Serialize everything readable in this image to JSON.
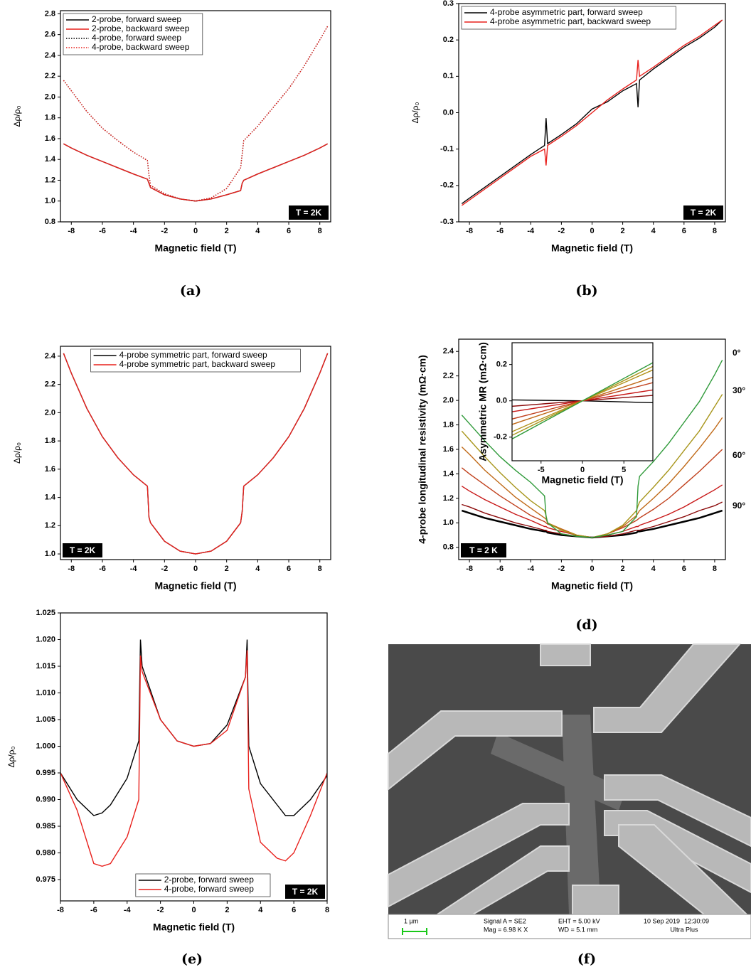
{
  "chart_data": [
    {
      "type": "line",
      "caption": "(a)",
      "xlabel": "Magnetic field (T)",
      "ylabel": "Δρ/ρ₀",
      "xlim": [
        -8.7,
        8.7
      ],
      "xticks": [
        -8,
        -6,
        -4,
        -2,
        0,
        2,
        4,
        6,
        8
      ],
      "ylim": [
        0.8,
        2.83
      ],
      "yticks": [
        0.8,
        {
          "value": 1,
          "label": "1.0"
        },
        1.2,
        1.4,
        1.6,
        1.8,
        {
          "value": 2,
          "label": "2.0"
        },
        2.2,
        2.4,
        2.6,
        2.8
      ],
      "x": [
        -8.5,
        -8,
        -7,
        -6,
        -5,
        -4,
        -3.1,
        -3,
        -2.9,
        -2,
        -1,
        0,
        1,
        2,
        2.9,
        3,
        3.1,
        4,
        5,
        6,
        7,
        8,
        8.5
      ],
      "series": [
        {
          "name": "2-probe, forward sweep",
          "color": "#000000",
          "dash": "solid",
          "values": [
            1.55,
            1.51,
            1.44,
            1.38,
            1.32,
            1.26,
            1.21,
            1.17,
            1.13,
            1.06,
            1.02,
            1.0,
            1.02,
            1.06,
            1.1,
            1.17,
            1.2,
            1.26,
            1.32,
            1.38,
            1.44,
            1.51,
            1.55
          ]
        },
        {
          "name": "2-probe, backward sweep",
          "color": "#e8201c",
          "dash": "solid",
          "values": [
            1.55,
            1.51,
            1.44,
            1.38,
            1.32,
            1.26,
            1.21,
            1.17,
            1.13,
            1.06,
            1.02,
            1.0,
            1.02,
            1.06,
            1.1,
            1.17,
            1.2,
            1.26,
            1.32,
            1.38,
            1.44,
            1.51,
            1.55
          ]
        },
        {
          "name": "4-probe, forward sweep",
          "color": "#000000",
          "dash": "dot",
          "values": [
            2.16,
            2.06,
            1.86,
            1.7,
            1.58,
            1.47,
            1.39,
            1.25,
            1.15,
            1.07,
            1.02,
            1.0,
            1.03,
            1.12,
            1.32,
            1.45,
            1.58,
            1.72,
            1.9,
            2.08,
            2.3,
            2.55,
            2.68
          ]
        },
        {
          "name": "4-probe, backward sweep",
          "color": "#e8201c",
          "dash": "dot",
          "values": [
            2.16,
            2.06,
            1.86,
            1.7,
            1.58,
            1.47,
            1.39,
            1.25,
            1.15,
            1.07,
            1.02,
            1.0,
            1.03,
            1.12,
            1.32,
            1.45,
            1.58,
            1.72,
            1.9,
            2.08,
            2.3,
            2.55,
            2.68
          ]
        }
      ],
      "legend_corner": "upper left",
      "annotation": "T = 2K",
      "annotation_corner": "lower right"
    },
    {
      "type": "line",
      "caption": "(b)",
      "xlabel": "Magnetic field (T)",
      "ylabel": "Δρ/ρ₀",
      "xlim": [
        -8.7,
        8.7
      ],
      "xticks": [
        -8,
        -6,
        -4,
        -2,
        0,
        2,
        4,
        6,
        8
      ],
      "ylim": [
        -0.3,
        0.3
      ],
      "yticks": [
        -0.3,
        -0.2,
        -0.1,
        {
          "value": 0,
          "label": "0.0"
        },
        0.1,
        0.2,
        0.3
      ],
      "x": [
        -8.5,
        -8,
        -7,
        -6,
        -5,
        -4,
        -3.1,
        -3,
        -2.9,
        -2,
        -1,
        0,
        1,
        2,
        2.9,
        3,
        3.1,
        4,
        5,
        6,
        7,
        8,
        8.5
      ],
      "series": [
        {
          "name": "4-probe asymmetric part, forward sweep",
          "color": "#000000",
          "dash": "solid",
          "values": [
            -0.25,
            -0.235,
            -0.205,
            -0.175,
            -0.145,
            -0.115,
            -0.09,
            -0.015,
            -0.085,
            -0.06,
            -0.03,
            0.01,
            0.03,
            0.06,
            0.08,
            0.015,
            0.09,
            0.12,
            0.15,
            0.18,
            0.205,
            0.235,
            0.255
          ]
        },
        {
          "name": "4-probe asymmetric part, backward sweep",
          "color": "#e8201c",
          "dash": "solid",
          "values": [
            -0.255,
            -0.24,
            -0.21,
            -0.18,
            -0.15,
            -0.12,
            -0.1,
            -0.145,
            -0.09,
            -0.065,
            -0.035,
            0.0,
            0.035,
            0.065,
            0.09,
            0.145,
            0.1,
            0.125,
            0.155,
            0.185,
            0.21,
            0.24,
            0.255
          ]
        }
      ],
      "legend_corner": "upper left",
      "annotation": "T = 2K",
      "annotation_corner": "lower right"
    },
    {
      "type": "line",
      "caption": "(c)",
      "xlabel": "Magnetic field (T)",
      "ylabel": "Δρ/ρ₀",
      "xlim": [
        -8.7,
        8.7
      ],
      "xticks": [
        -8,
        -6,
        -4,
        -2,
        0,
        2,
        4,
        6,
        8
      ],
      "ylim": [
        0.96,
        2.47
      ],
      "yticks": [
        {
          "value": 1,
          "label": "1.0"
        },
        1.2,
        1.4,
        1.6,
        1.8,
        {
          "value": 2,
          "label": "2.0"
        },
        2.2,
        2.4
      ],
      "x": [
        -8.5,
        -8,
        -7,
        -6,
        -5,
        -4,
        -3.1,
        -3,
        -2.9,
        -2,
        -1,
        0,
        1,
        2,
        2.9,
        3,
        3.1,
        4,
        5,
        6,
        7,
        8,
        8.5
      ],
      "series": [
        {
          "name": "4-probe symmetric part, forward sweep",
          "color": "#000000",
          "dash": "solid",
          "values": [
            2.42,
            2.28,
            2.03,
            1.83,
            1.68,
            1.56,
            1.48,
            1.26,
            1.22,
            1.09,
            1.02,
            1.0,
            1.02,
            1.09,
            1.22,
            1.3,
            1.48,
            1.56,
            1.68,
            1.83,
            2.03,
            2.28,
            2.42
          ]
        },
        {
          "name": "4-probe symmetric part, backward sweep",
          "color": "#e8201c",
          "dash": "solid",
          "values": [
            2.42,
            2.28,
            2.03,
            1.83,
            1.68,
            1.56,
            1.48,
            1.26,
            1.22,
            1.09,
            1.02,
            1.0,
            1.02,
            1.09,
            1.22,
            1.3,
            1.48,
            1.56,
            1.68,
            1.83,
            2.03,
            2.28,
            2.42
          ]
        }
      ],
      "legend_corner": "upper center",
      "annotation": "T = 2K",
      "annotation_corner": "lower left"
    },
    {
      "type": "line",
      "caption": "(d)",
      "xlabel": "Magnetic field (T)",
      "ylabel": "4-probe longitudinal resistivity (mΩ·cm)",
      "xlim": [
        -8.7,
        8.7
      ],
      "xticks": [
        -8,
        -6,
        -4,
        -2,
        0,
        2,
        4,
        6,
        8
      ],
      "ylim": [
        0.7,
        2.5
      ],
      "yticks": [
        0.8,
        {
          "value": 1,
          "label": "1.0"
        },
        1.2,
        1.4,
        1.6,
        1.8,
        {
          "value": 2,
          "label": "2.0"
        },
        2.2,
        2.4
      ],
      "x": [
        -8.5,
        -8,
        -7,
        -6,
        -5,
        -4,
        -3.1,
        -3,
        -2.9,
        -2,
        -1,
        0,
        1,
        2,
        2.9,
        3,
        3.1,
        4,
        5,
        6,
        7,
        8,
        8.5
      ],
      "series": [
        {
          "color": "#000000",
          "values": [
            1.1,
            1.08,
            1.04,
            1.01,
            0.98,
            0.95,
            0.93,
            0.93,
            0.92,
            0.9,
            0.89,
            0.88,
            0.89,
            0.9,
            0.92,
            0.93,
            0.93,
            0.95,
            0.98,
            1.01,
            1.04,
            1.08,
            1.1
          ]
        },
        {
          "color": "#8b0a0a",
          "values": [
            1.15,
            1.13,
            1.08,
            1.04,
            1.0,
            0.97,
            0.94,
            0.94,
            0.93,
            0.91,
            0.89,
            0.88,
            0.89,
            0.91,
            0.94,
            0.94,
            0.94,
            0.97,
            1.01,
            1.05,
            1.1,
            1.14,
            1.17
          ]
        },
        {
          "color": "#c81818",
          "values": [
            1.3,
            1.26,
            1.19,
            1.13,
            1.07,
            1.02,
            0.97,
            0.97,
            0.96,
            0.93,
            0.9,
            0.88,
            0.9,
            0.93,
            0.97,
            0.97,
            0.98,
            1.02,
            1.07,
            1.13,
            1.2,
            1.27,
            1.31
          ]
        },
        {
          "color": "#c0401c",
          "values": [
            1.45,
            1.4,
            1.31,
            1.22,
            1.14,
            1.06,
            1.01,
            1.0,
            0.99,
            0.95,
            0.9,
            0.88,
            0.91,
            0.96,
            1.02,
            1.03,
            1.04,
            1.11,
            1.2,
            1.31,
            1.42,
            1.54,
            1.6
          ]
        },
        {
          "color": "#c06a18",
          "values": [
            1.62,
            1.56,
            1.43,
            1.32,
            1.21,
            1.12,
            1.04,
            1.03,
            1.0,
            0.95,
            0.9,
            0.88,
            0.91,
            0.97,
            1.06,
            1.08,
            1.1,
            1.2,
            1.32,
            1.46,
            1.61,
            1.77,
            1.86
          ]
        },
        {
          "color": "#a8961c",
          "values": [
            1.75,
            1.68,
            1.54,
            1.41,
            1.29,
            1.18,
            1.1,
            1.06,
            1.0,
            0.94,
            0.9,
            0.88,
            0.91,
            0.98,
            1.1,
            1.14,
            1.17,
            1.29,
            1.43,
            1.59,
            1.75,
            1.95,
            2.05
          ]
        },
        {
          "color": "#2f9a3a",
          "values": [
            1.88,
            1.81,
            1.67,
            1.54,
            1.43,
            1.33,
            1.22,
            1.05,
            1.0,
            0.91,
            0.89,
            0.88,
            0.9,
            0.93,
            1.05,
            1.3,
            1.38,
            1.5,
            1.65,
            1.82,
            1.99,
            2.21,
            2.33
          ]
        }
      ],
      "angle_labels": [
        "0°",
        "30°",
        "60°",
        "90°"
      ],
      "annotation": "T = 2 K",
      "annotation_corner": "lower left"
    },
    {
      "type": "line",
      "xlabel": "Magnetic field (T)",
      "ylabel": "Asymmetric MR (mΩ·cm)",
      "xlim": [
        -8.5,
        8.5
      ],
      "xticks": [
        -5,
        0,
        5
      ],
      "ylim": [
        -0.33,
        0.32
      ],
      "yticks": [
        -0.2,
        {
          "value": 0,
          "label": "0.0"
        },
        0.2
      ],
      "x": [
        -8.5,
        0,
        8.5
      ],
      "series": [
        {
          "color": "#000000",
          "values": [
            0.005,
            0,
            -0.01
          ]
        },
        {
          "color": "#8b0a0a",
          "values": [
            -0.03,
            0,
            0.03
          ]
        },
        {
          "color": "#c81818",
          "values": [
            -0.06,
            0,
            0.06
          ]
        },
        {
          "color": "#c0401c",
          "values": [
            -0.1,
            0,
            0.1
          ]
        },
        {
          "color": "#c06a18",
          "values": [
            -0.13,
            0,
            0.13
          ]
        },
        {
          "color": "#b3921c",
          "values": [
            -0.17,
            0,
            0.17
          ]
        },
        {
          "color": "#a8961c",
          "values": [
            -0.19,
            0,
            0.19
          ]
        },
        {
          "color": "#2f9a3a",
          "values": [
            -0.21,
            0,
            0.21
          ]
        }
      ]
    },
    {
      "type": "line",
      "caption": "(e)",
      "xlabel": "Magnetic field (T)",
      "ylabel": "Δρ/ρ₀",
      "xlim": [
        -8,
        8
      ],
      "xticks": [
        -8,
        -6,
        -4,
        -2,
        0,
        2,
        4,
        6,
        8
      ],
      "ylim": [
        0.971,
        1.025
      ],
      "yticks": [
        0.975,
        {
          "value": 0.98,
          "label": "0.980"
        },
        0.985,
        {
          "value": 0.99,
          "label": "0.990"
        },
        0.995,
        {
          "value": 1,
          "label": "1.000"
        },
        1.005,
        {
          "value": 1.01,
          "label": "1.010"
        },
        1.015,
        {
          "value": 1.02,
          "label": "1.020"
        },
        1.025
      ],
      "x": [
        -8,
        -7,
        -6,
        -5.5,
        -5,
        -4,
        -3.3,
        -3.2,
        -3.1,
        -2,
        -1,
        0,
        1,
        2,
        3.1,
        3.2,
        3.3,
        4,
        5,
        5.5,
        6,
        7,
        8
      ],
      "series": [
        {
          "name": "2-probe, forward sweep",
          "color": "#000000",
          "dash": "solid",
          "values": [
            0.995,
            0.99,
            0.987,
            0.9875,
            0.989,
            0.994,
            1.001,
            1.02,
            1.015,
            1.005,
            1.001,
            1.0,
            1.0005,
            1.004,
            1.013,
            1.02,
            1.0,
            0.993,
            0.989,
            0.987,
            0.987,
            0.99,
            0.9945
          ]
        },
        {
          "name": "4-probe, forward sweep",
          "color": "#e8201c",
          "dash": "solid",
          "values": [
            0.995,
            0.988,
            0.978,
            0.9775,
            0.978,
            0.983,
            0.99,
            1.017,
            1.014,
            1.005,
            1.001,
            1.0,
            1.0005,
            1.003,
            1.013,
            1.018,
            0.992,
            0.982,
            0.979,
            0.9785,
            0.98,
            0.987,
            0.995
          ]
        }
      ],
      "legend_corner": "lower right",
      "annotation": "T = 2K",
      "annotation_corner": "lower right"
    }
  ],
  "sem_image": {
    "caption": "(f)",
    "scale": "1 µm",
    "signal": "Signal A = SE2",
    "mag": "Mag =  6.98 K X",
    "eht": "EHT =  5.00 kV",
    "wd": "WD =  5.1 mm",
    "date": "10 Sep 2019",
    "time": "12:30:09",
    "instrument": "Ultra Plus"
  }
}
